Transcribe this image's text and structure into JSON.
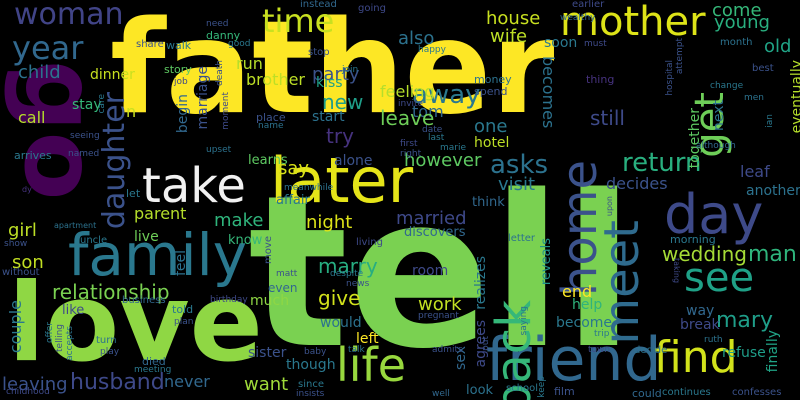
{
  "word_cloud": {
    "words": [
      {
        "text": "father",
        "color": "#fde725"
      },
      {
        "text": "tell",
        "color": "#7ad151"
      },
      {
        "text": "love",
        "color": "#8fd744"
      },
      {
        "text": "go",
        "color": "#440154"
      },
      {
        "text": "later",
        "color": "#e5e419"
      },
      {
        "text": "take",
        "color": "#f1f1f1"
      },
      {
        "text": "family",
        "color": "#2a788e"
      },
      {
        "text": "friend",
        "color": "#31688e"
      },
      {
        "text": "mother",
        "color": "#dde318"
      },
      {
        "text": "home",
        "color": "#3b528b"
      },
      {
        "text": "meet",
        "color": "#2f6b8e"
      },
      {
        "text": "back",
        "color": "#35b779"
      },
      {
        "text": "day",
        "color": "#3e4a89"
      },
      {
        "text": "see",
        "color": "#1fa187"
      },
      {
        "text": "find",
        "color": "#d2e21b"
      },
      {
        "text": "get",
        "color": "#6ece58"
      },
      {
        "text": "life",
        "color": "#98d83e"
      },
      {
        "text": "time",
        "color": "#c8e020"
      },
      {
        "text": "year",
        "color": "#31688e"
      },
      {
        "text": "woman",
        "color": "#414487"
      },
      {
        "text": "daughter",
        "color": "#3b528b"
      },
      {
        "text": "return",
        "color": "#29af7f"
      },
      {
        "text": "asks",
        "color": "#2c728e"
      },
      {
        "text": "husband",
        "color": "#3e4989"
      },
      {
        "text": "marry",
        "color": "#27ad81"
      },
      {
        "text": "mary",
        "color": "#1f9e89"
      },
      {
        "text": "away",
        "color": "#2a788e"
      },
      {
        "text": "wedding",
        "color": "#a5db36"
      },
      {
        "text": "relationship",
        "color": "#7ad151"
      },
      {
        "text": "man",
        "color": "#2fb47c"
      },
      {
        "text": "house",
        "color": "#c8e020"
      },
      {
        "text": "wife",
        "color": "#bddf26"
      },
      {
        "text": "come",
        "color": "#35b779"
      },
      {
        "text": "young",
        "color": "#29af7f"
      },
      {
        "text": "old",
        "color": "#20a486"
      },
      {
        "text": "also",
        "color": "#2c728e"
      },
      {
        "text": "party",
        "color": "#3b528b"
      },
      {
        "text": "new",
        "color": "#1f9e89"
      },
      {
        "text": "try",
        "color": "#46327e"
      },
      {
        "text": "feeling",
        "color": "#b5de2b"
      },
      {
        "text": "tom",
        "color": "#31688e"
      },
      {
        "text": "leave",
        "color": "#6ece58"
      },
      {
        "text": "one",
        "color": "#2a788e"
      },
      {
        "text": "still",
        "color": "#3e4a89"
      },
      {
        "text": "becomes",
        "color": "#2c728e"
      },
      {
        "text": "however",
        "color": "#5ec962"
      },
      {
        "text": "visit",
        "color": "#2a788e"
      },
      {
        "text": "decides",
        "color": "#3b528b"
      },
      {
        "text": "married",
        "color": "#3e4989"
      },
      {
        "text": "night",
        "color": "#dde318"
      },
      {
        "text": "say",
        "color": "#d8e219"
      },
      {
        "text": "give",
        "color": "#d2e21b"
      },
      {
        "text": "work",
        "color": "#c2df23"
      },
      {
        "text": "end",
        "color": "#fde725"
      },
      {
        "text": "child",
        "color": "#2c728e"
      },
      {
        "text": "girl",
        "color": "#bddf26"
      },
      {
        "text": "son",
        "color": "#c2df23"
      },
      {
        "text": "couple",
        "color": "#2a788e"
      },
      {
        "text": "leaving",
        "color": "#3b528b"
      },
      {
        "text": "want",
        "color": "#9fda3a"
      },
      {
        "text": "never",
        "color": "#31688e"
      },
      {
        "text": "sister",
        "color": "#3b528b"
      },
      {
        "text": "parent",
        "color": "#b5de2b"
      },
      {
        "text": "make",
        "color": "#2fb47c"
      },
      {
        "text": "dinner",
        "color": "#c8e020"
      },
      {
        "text": "run",
        "color": "#b5de2b"
      },
      {
        "text": "brother",
        "color": "#bddf26"
      },
      {
        "text": "kiss",
        "color": "#1fa187"
      },
      {
        "text": "start",
        "color": "#2c728e"
      },
      {
        "text": "alone",
        "color": "#3b528b"
      },
      {
        "text": "learns",
        "color": "#5ec962"
      },
      {
        "text": "would",
        "color": "#2c728e"
      },
      {
        "text": "left",
        "color": "#fde725"
      },
      {
        "text": "though",
        "color": "#2a788e"
      },
      {
        "text": "even",
        "color": "#31688e"
      },
      {
        "text": "much",
        "color": "#8fd744"
      },
      {
        "text": "live",
        "color": "#6ece58"
      },
      {
        "text": "know",
        "color": "#35b779"
      },
      {
        "text": "refuse",
        "color": "#1f9e89"
      },
      {
        "text": "finally",
        "color": "#20a486"
      },
      {
        "text": "eventually",
        "color": "#b5de2b"
      },
      {
        "text": "another",
        "color": "#2c728e"
      },
      {
        "text": "leaf",
        "color": "#3e4a89"
      },
      {
        "text": "next",
        "color": "#2c728e"
      },
      {
        "text": "together",
        "color": "#5ec962"
      },
      {
        "text": "hotel",
        "color": "#bddf26"
      },
      {
        "text": "room",
        "color": "#3e4a89"
      },
      {
        "text": "become",
        "color": "#2a788e"
      },
      {
        "text": "help",
        "color": "#2fb47c"
      },
      {
        "text": "way",
        "color": "#31688e"
      },
      {
        "text": "break",
        "color": "#3e4a89"
      },
      {
        "text": "realizes",
        "color": "#2a788e"
      },
      {
        "text": "reveals",
        "color": "#21918c"
      },
      {
        "text": "agrees",
        "color": "#3e4a89"
      },
      {
        "text": "sex",
        "color": "#31688e"
      },
      {
        "text": "feel",
        "color": "#2c728e"
      },
      {
        "text": "begin",
        "color": "#31688e"
      },
      {
        "text": "marriage",
        "color": "#3b528b"
      },
      {
        "text": "n",
        "color": "#c8e020"
      },
      {
        "text": "stay",
        "color": "#35b779"
      },
      {
        "text": "call",
        "color": "#b5de2b"
      },
      {
        "text": "soon",
        "color": "#2a788e"
      },
      {
        "text": "instead",
        "color": "#31688e"
      },
      {
        "text": "going",
        "color": "#3e4989"
      },
      {
        "text": "earlier",
        "color": "#3e4a89"
      },
      {
        "text": "danny",
        "color": "#35b779"
      },
      {
        "text": "need",
        "color": "#3b528b"
      },
      {
        "text": "share",
        "color": "#3b528b"
      },
      {
        "text": "walk",
        "color": "#2a788e"
      },
      {
        "text": "story",
        "color": "#5ec962"
      },
      {
        "text": "job",
        "color": "#3e4989"
      },
      {
        "text": "stop",
        "color": "#3b528b"
      },
      {
        "text": "join",
        "color": "#2a788e"
      },
      {
        "text": "money",
        "color": "#2c728e"
      },
      {
        "text": "spend",
        "color": "#3b528b"
      },
      {
        "text": "invite",
        "color": "#3e4a89"
      },
      {
        "text": "happy",
        "color": "#2a788e"
      },
      {
        "text": "wealthy",
        "color": "#31688e"
      },
      {
        "text": "must",
        "color": "#3e4a89"
      },
      {
        "text": "thing",
        "color": "#46327e"
      },
      {
        "text": "month",
        "color": "#2c728e"
      },
      {
        "text": "best",
        "color": "#3b528b"
      },
      {
        "text": "attempt",
        "color": "#3b528b"
      },
      {
        "text": "hospital",
        "color": "#3b528b"
      },
      {
        "text": "change",
        "color": "#2a788e"
      },
      {
        "text": "men",
        "color": "#2c728e"
      },
      {
        "text": "ian",
        "color": "#2a788e"
      },
      {
        "text": "although",
        "color": "#31688e"
      },
      {
        "text": "moment",
        "color": "#3e4a89"
      },
      {
        "text": "death",
        "color": "#3b528b"
      },
      {
        "text": "good",
        "color": "#2a788e"
      },
      {
        "text": "place",
        "color": "#3b528b"
      },
      {
        "text": "name",
        "color": "#2c728e"
      },
      {
        "text": "date",
        "color": "#3b528b"
      },
      {
        "text": "last",
        "color": "#2a788e"
      },
      {
        "text": "first",
        "color": "#3e4a89"
      },
      {
        "text": "right",
        "color": "#3b528b"
      },
      {
        "text": "marie",
        "color": "#2a788e"
      },
      {
        "text": "seeing",
        "color": "#3b528b"
      },
      {
        "text": "care",
        "color": "#2a788e"
      },
      {
        "text": "upset",
        "color": "#2c728e"
      },
      {
        "text": "arrives",
        "color": "#2a788e"
      },
      {
        "text": "named",
        "color": "#3b528b"
      },
      {
        "text": "meanwhile",
        "color": "#2c728e"
      },
      {
        "text": "affair",
        "color": "#2a788e"
      },
      {
        "text": "think",
        "color": "#31688e"
      },
      {
        "text": "letter",
        "color": "#2c728e"
      },
      {
        "text": "discovers",
        "color": "#31688e"
      },
      {
        "text": "living",
        "color": "#3e4a89"
      },
      {
        "text": "move",
        "color": "#3b528b"
      },
      {
        "text": "morning",
        "color": "#2a788e"
      },
      {
        "text": "taking",
        "color": "#3e4a89"
      },
      {
        "text": "upon",
        "color": "#3b528b"
      },
      {
        "text": "apartment",
        "color": "#2c728e"
      },
      {
        "text": "show",
        "color": "#3b528b"
      },
      {
        "text": "uncle",
        "color": "#2a788e"
      },
      {
        "text": "without",
        "color": "#3b528b"
      },
      {
        "text": "dy",
        "color": "#46327e"
      },
      {
        "text": "let",
        "color": "#2a788e"
      },
      {
        "text": "matt",
        "color": "#3b528b"
      },
      {
        "text": "despite",
        "color": "#2a788e"
      },
      {
        "text": "news",
        "color": "#3b528b"
      },
      {
        "text": "birthday",
        "color": "#3e4a89"
      },
      {
        "text": "business",
        "color": "#31688e"
      },
      {
        "text": "told",
        "color": "#2a788e"
      },
      {
        "text": "plan",
        "color": "#3b528b"
      },
      {
        "text": "like",
        "color": "#3e4a89"
      },
      {
        "text": "turn",
        "color": "#2c728e"
      },
      {
        "text": "play",
        "color": "#3b528b"
      },
      {
        "text": "died",
        "color": "#31688e"
      },
      {
        "text": "meeting",
        "color": "#2a788e"
      },
      {
        "text": "baby",
        "color": "#3b528b"
      },
      {
        "text": "talk",
        "color": "#2c728e"
      },
      {
        "text": "since",
        "color": "#2a788e"
      },
      {
        "text": "insists",
        "color": "#3b528b"
      },
      {
        "text": "well",
        "color": "#31688e"
      },
      {
        "text": "look",
        "color": "#2c728e"
      },
      {
        "text": "school",
        "color": "#2a788e"
      },
      {
        "text": "admits",
        "color": "#3b528b"
      },
      {
        "text": "saying",
        "color": "#2c728e"
      },
      {
        "text": "pregnant",
        "color": "#3b528b"
      },
      {
        "text": "keep",
        "color": "#2a788e"
      },
      {
        "text": "town",
        "color": "#3e4a89"
      },
      {
        "text": "decide",
        "color": "#2c728e"
      },
      {
        "text": "trip",
        "color": "#2a788e"
      },
      {
        "text": "film",
        "color": "#3b528b"
      },
      {
        "text": "could",
        "color": "#31688e"
      },
      {
        "text": "continues",
        "color": "#2a788e"
      },
      {
        "text": "confesses",
        "color": "#3b528b"
      },
      {
        "text": "ruth",
        "color": "#2c728e"
      },
      {
        "text": "offer",
        "color": "#2a788e"
      },
      {
        "text": "telling",
        "color": "#3b528b"
      },
      {
        "text": "accepts",
        "color": "#2c728e"
      },
      {
        "text": "childhood",
        "color": "#3e4a89"
      },
      {
        "text": "put",
        "color": "#3b528b"
      }
    ]
  }
}
